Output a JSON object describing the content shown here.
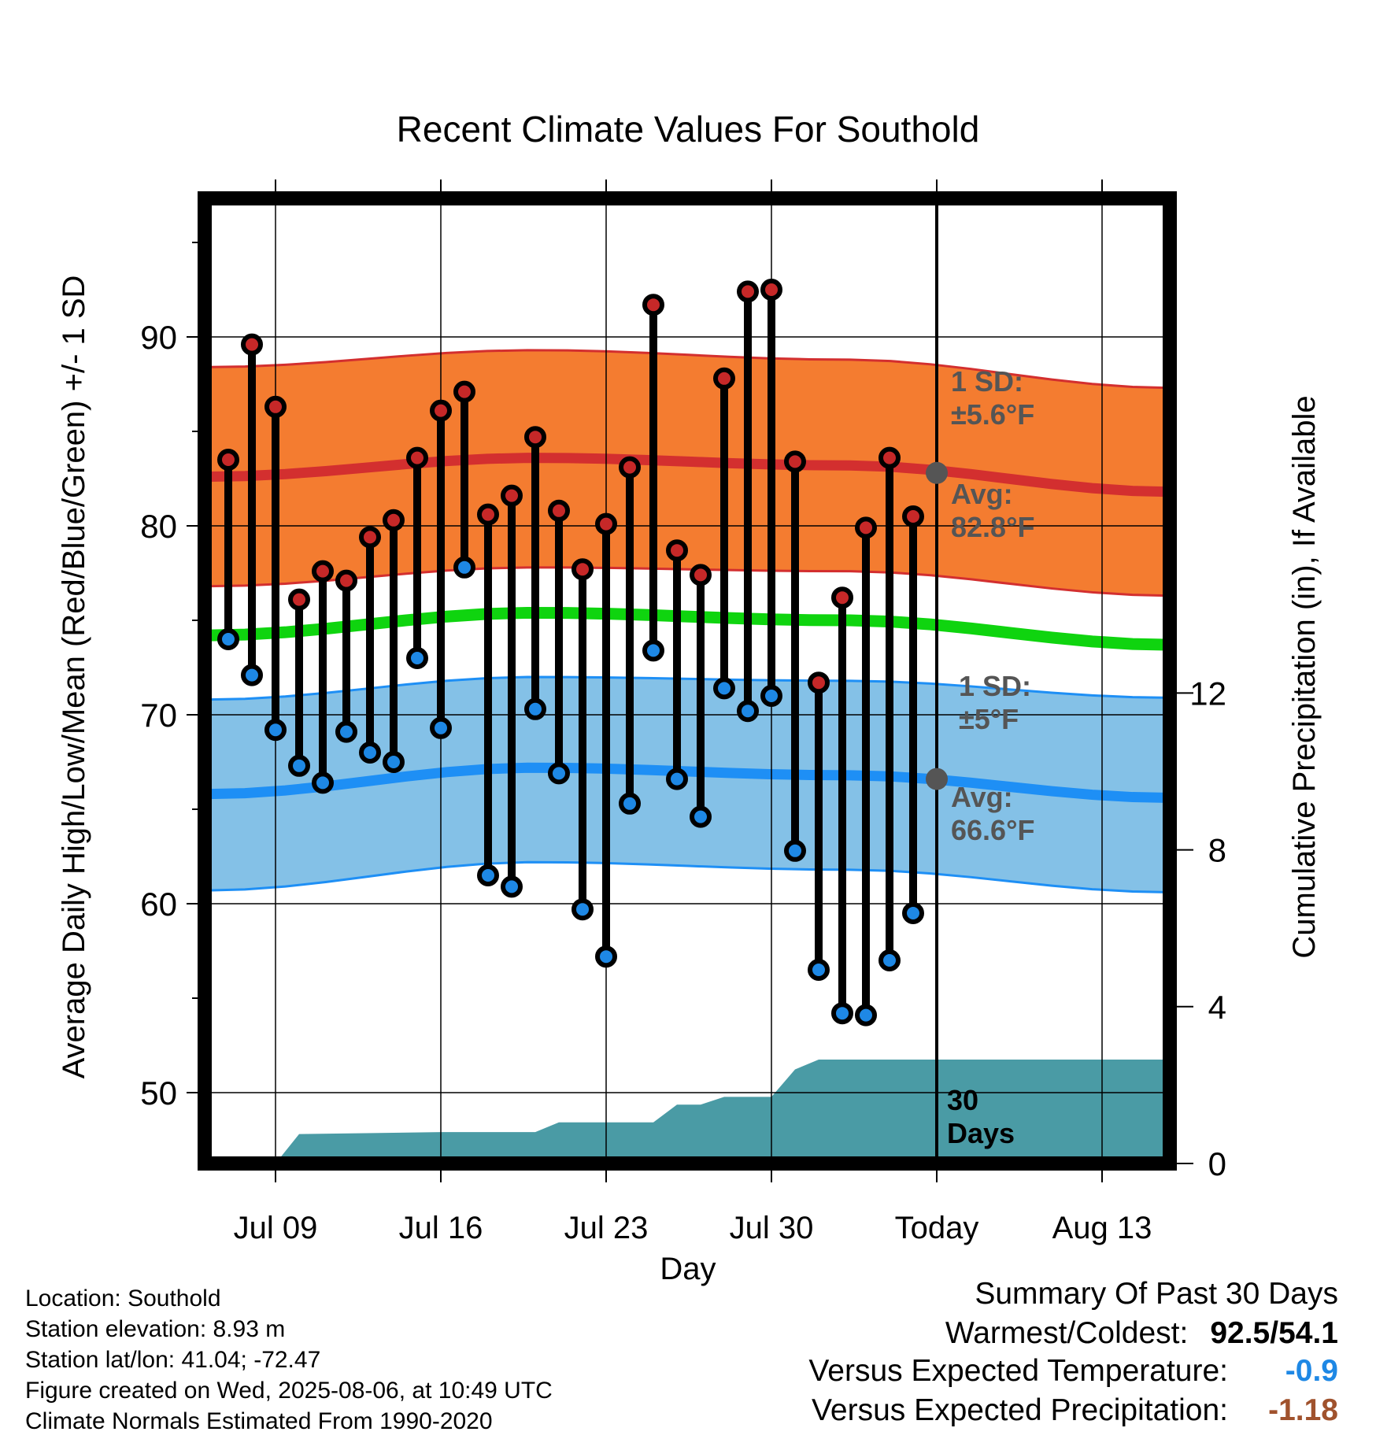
{
  "chart_data": {
    "type": "line",
    "title": "Recent Climate Values For Southold",
    "xlabel": "Day",
    "ylabel": "Average Daily High/Low/Mean (Red/Blue/Green) +/- 1 SD",
    "y2label": "Cumulative Precipitation (in), If Available",
    "ylim": [
      45.5,
      97.5
    ],
    "y_ticks": [
      50,
      60,
      70,
      80,
      90
    ],
    "y2lim": [
      0,
      24.6
    ],
    "y2_ticks": [
      0,
      4,
      8,
      12
    ],
    "x_tick_labels": [
      "Jul 09",
      "Jul 16",
      "Jul 23",
      "Jul 30",
      "Today",
      "Aug 13"
    ],
    "x_tick_dates": [
      "2025-07-09",
      "2025-07-16",
      "2025-07-23",
      "2025-07-30",
      "2025-08-06",
      "2025-08-13"
    ],
    "grid": true,
    "dates": [
      "2025-07-07",
      "2025-07-08",
      "2025-07-09",
      "2025-07-10",
      "2025-07-11",
      "2025-07-12",
      "2025-07-13",
      "2025-07-14",
      "2025-07-15",
      "2025-07-16",
      "2025-07-17",
      "2025-07-18",
      "2025-07-19",
      "2025-07-20",
      "2025-07-21",
      "2025-07-22",
      "2025-07-23",
      "2025-07-24",
      "2025-07-25",
      "2025-07-26",
      "2025-07-27",
      "2025-07-28",
      "2025-07-29",
      "2025-07-30",
      "2025-07-31",
      "2025-08-01",
      "2025-08-02",
      "2025-08-03",
      "2025-08-04",
      "2025-08-05"
    ],
    "series": [
      {
        "name": "High",
        "color": "#c62828",
        "values": [
          83.5,
          89.6,
          86.3,
          76.1,
          77.6,
          77.1,
          79.4,
          80.3,
          83.6,
          86.1,
          87.1,
          80.6,
          81.6,
          84.7,
          80.8,
          77.7,
          80.1,
          83.1,
          91.7,
          78.7,
          77.4,
          87.8,
          92.4,
          92.5,
          83.4,
          71.7,
          76.2,
          79.9,
          83.6,
          80.5
        ]
      },
      {
        "name": "Low",
        "color": "#1e88e5",
        "values": [
          74.0,
          72.1,
          69.2,
          67.3,
          66.4,
          69.1,
          68.0,
          67.5,
          73.0,
          69.3,
          77.8,
          61.5,
          60.9,
          70.3,
          66.9,
          59.7,
          57.2,
          65.3,
          73.4,
          66.6,
          64.6,
          71.4,
          70.2,
          71.0,
          62.8,
          56.5,
          54.2,
          54.1,
          57.0,
          59.5
        ]
      }
    ],
    "normals": {
      "dates": [
        "2025-07-06",
        "2025-07-20",
        "2025-08-02",
        "2025-08-16"
      ],
      "high_avg": [
        82.6,
        83.6,
        83.2,
        81.8
      ],
      "high_sd_upper": [
        88.4,
        89.3,
        88.8,
        87.3
      ],
      "high_sd_lower": [
        76.8,
        77.8,
        77.6,
        76.3
      ],
      "mean_avg": [
        74.2,
        75.4,
        75.0,
        73.7
      ],
      "low_avg": [
        65.8,
        67.2,
        66.8,
        65.6
      ],
      "low_sd_upper": [
        70.8,
        72.0,
        71.8,
        70.9
      ],
      "low_sd_lower": [
        60.7,
        62.2,
        61.8,
        60.6
      ],
      "colors": {
        "high_band": "#f47c30",
        "high_line": "#d32f2f",
        "mean_line": "#0fd40f",
        "low_band": "#84c1e7",
        "low_line": "#1e8ff5"
      }
    },
    "precipitation": {
      "color": "#4a9ba5",
      "dates": [
        "2025-07-06",
        "2025-07-09",
        "2025-07-10",
        "2025-07-16",
        "2025-07-17",
        "2025-07-20",
        "2025-07-21",
        "2025-07-24",
        "2025-07-25",
        "2025-07-26",
        "2025-07-27",
        "2025-07-28",
        "2025-07-29",
        "2025-07-30",
        "2025-07-31",
        "2025-08-01",
        "2025-08-06",
        "2025-08-16"
      ],
      "values": [
        0,
        0,
        0.75,
        0.8,
        0.8,
        0.8,
        1.05,
        1.05,
        1.05,
        1.5,
        1.5,
        1.7,
        1.7,
        1.7,
        2.4,
        2.65,
        2.65,
        2.65
      ]
    },
    "today": "2025-08-06",
    "today_markers": {
      "high_avg": 82.8,
      "low_avg": 66.6,
      "color": "#555555"
    },
    "annotations": {
      "high_sd": [
        "1 SD:",
        "±5.6°F"
      ],
      "high_avg": [
        "Avg:",
        "82.8°F"
      ],
      "low_sd": [
        "1 SD:",
        "±5°F"
      ],
      "low_avg": [
        "Avg:",
        "66.6°F"
      ],
      "days": [
        "30",
        "Days"
      ]
    }
  },
  "info": {
    "location": "Location: Southold",
    "elevation": "Station elevation: 8.93 m",
    "latlon": "Station lat/lon: 41.04; -72.47",
    "created": "Figure created on Wed, 2025-08-06, at 10:49 UTC",
    "normals": "Climate Normals Estimated From 1990-2020"
  },
  "summary": {
    "title": "Summary Of Past 30 Days",
    "warmest_label": "Warmest/Coldest:",
    "warmest_value": "92.5/54.1",
    "temp_label": "Versus Expected Temperature:",
    "temp_value": "-0.9",
    "temp_color": "#1e88e5",
    "precip_label": "Versus Expected Precipitation:",
    "precip_value": "-1.18",
    "precip_color": "#a0522d"
  }
}
